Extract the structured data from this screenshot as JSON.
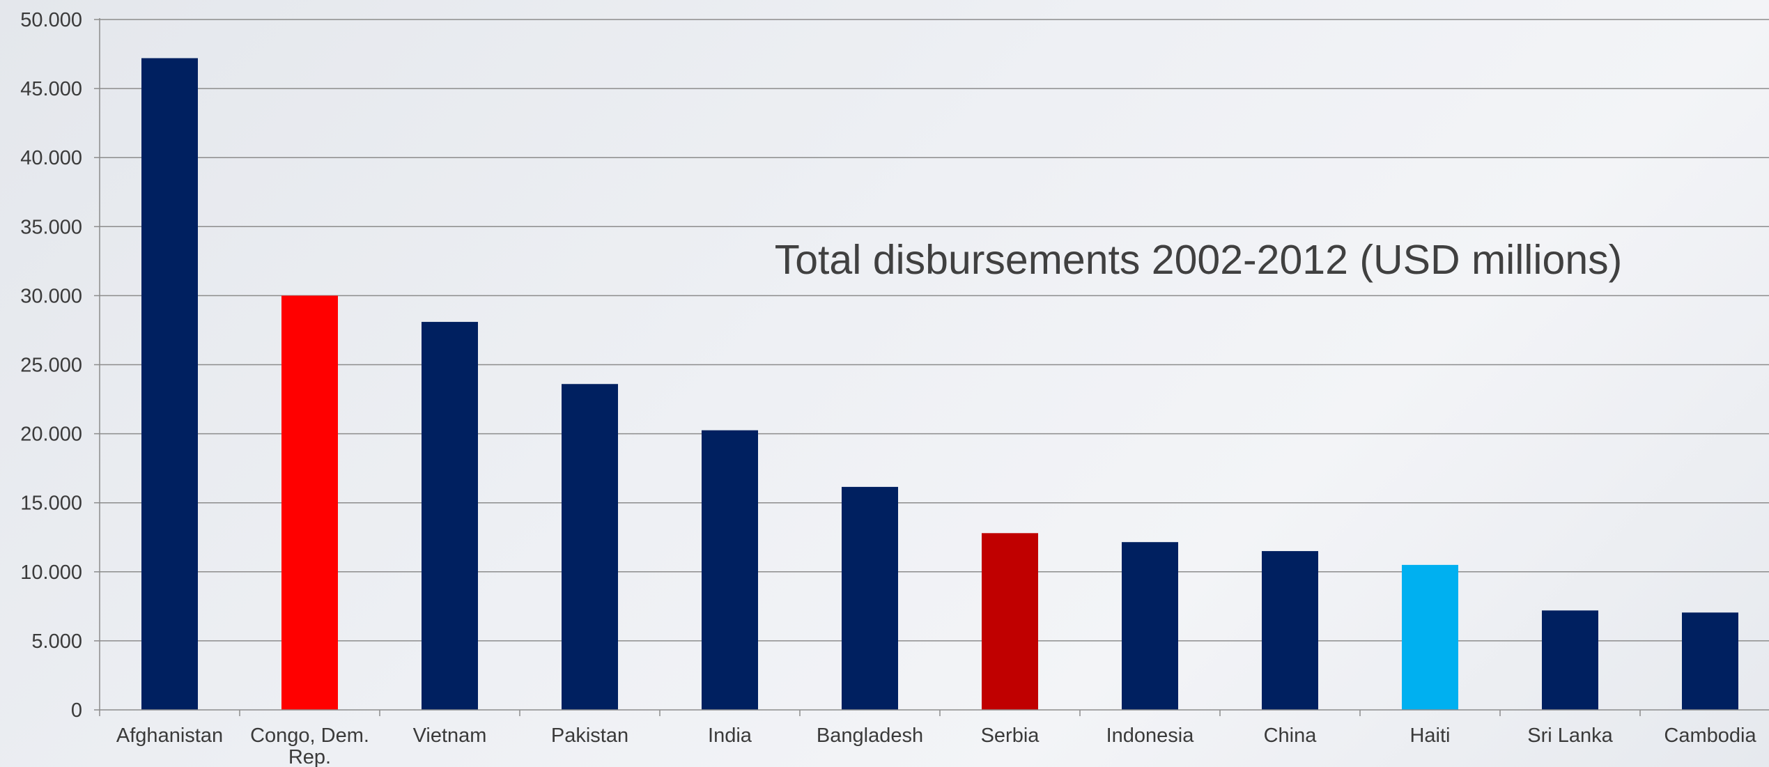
{
  "chart_data": {
    "type": "bar",
    "title": "Total disbursements 2002-2012 (USD millions)",
    "xlabel": "",
    "ylabel": "",
    "categories": [
      "Afghanistan",
      "Congo, Dem. Rep.",
      "Vietnam",
      "Pakistan",
      "India",
      "Bangladesh",
      "Serbia",
      "Indonesia",
      "China",
      "Haiti",
      "Sri Lanka",
      "Cambodia"
    ],
    "values": [
      47200,
      30000,
      28100,
      23600,
      20250,
      16150,
      12800,
      12150,
      11500,
      10500,
      7200,
      7050
    ],
    "bar_colors": [
      "#002060",
      "#ff0000",
      "#002060",
      "#002060",
      "#002060",
      "#002060",
      "#c00000",
      "#002060",
      "#002060",
      "#00b0f0",
      "#002060",
      "#002060"
    ],
    "ylim": [
      0,
      50000
    ],
    "yticks": [
      0,
      5000,
      10000,
      15000,
      20000,
      25000,
      30000,
      35000,
      40000,
      45000,
      50000
    ],
    "ytick_labels": [
      "0",
      "5.000",
      "10.000",
      "15.000",
      "20.000",
      "25.000",
      "30.000",
      "35.000",
      "40.000",
      "45.000",
      "50.000"
    ],
    "grid": true,
    "legend": "none",
    "colors": {
      "gridline": "#8c8c8c",
      "axis": "#8c8c8c",
      "text": "#3a3a3a"
    }
  }
}
